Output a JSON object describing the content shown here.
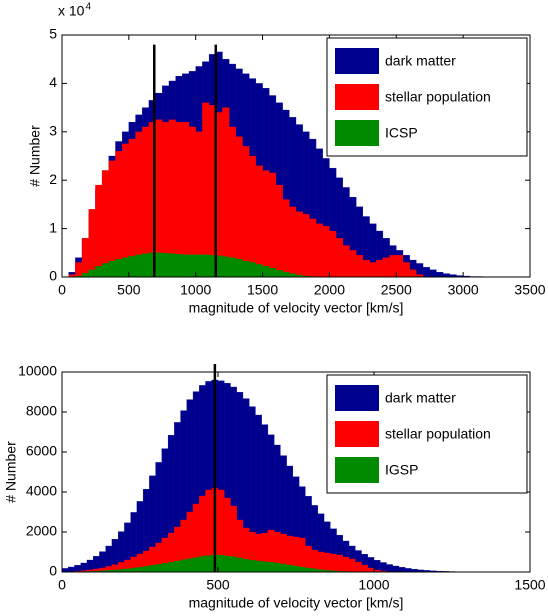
{
  "chart_data": [
    {
      "type": "histogram",
      "y_multiplier": "x 10",
      "y_multiplier_exponent": "4",
      "xlabel": "magnitude of velocity vector [km/s]",
      "ylabel": "# Number",
      "xlim": [
        0,
        3500
      ],
      "xticks": [
        0,
        500,
        1000,
        1500,
        2000,
        2500,
        3000,
        3500
      ],
      "ylim": [
        0,
        5
      ],
      "yticks": [
        0,
        1,
        2,
        3,
        4,
        5
      ],
      "legend": "northeast",
      "bins": [
        0,
        50,
        100,
        150,
        200,
        250,
        300,
        350,
        400,
        450,
        500,
        550,
        600,
        650,
        700,
        750,
        800,
        850,
        900,
        950,
        1000,
        1050,
        1100,
        1150,
        1200,
        1250,
        1300,
        1350,
        1400,
        1450,
        1500,
        1550,
        1600,
        1650,
        1700,
        1750,
        1800,
        1850,
        1900,
        1950,
        2000,
        2050,
        2100,
        2150,
        2200,
        2250,
        2300,
        2350,
        2400,
        2450,
        2500,
        2550,
        2600,
        2650,
        2700,
        2750,
        2800,
        2850,
        2900,
        2950,
        3000,
        3050,
        3100,
        3150,
        3200,
        3250,
        3300,
        3350,
        3400,
        3450,
        3500
      ],
      "series": [
        {
          "name": "dark matter",
          "color": "#00008f",
          "values": [
            0,
            0.1,
            0.4,
            0.8,
            1.3,
            1.8,
            2.2,
            2.5,
            2.8,
            3.0,
            3.2,
            3.35,
            3.5,
            3.65,
            3.8,
            3.95,
            4.05,
            4.15,
            4.2,
            4.25,
            4.35,
            4.45,
            4.6,
            4.65,
            4.5,
            4.4,
            4.3,
            4.2,
            4.1,
            4.0,
            3.9,
            3.75,
            3.6,
            3.45,
            3.3,
            3.15,
            3.0,
            2.85,
            2.65,
            2.45,
            2.25,
            2.05,
            1.85,
            1.65,
            1.45,
            1.25,
            1.1,
            0.95,
            0.8,
            0.65,
            0.55,
            0.45,
            0.35,
            0.28,
            0.2,
            0.15,
            0.1,
            0.07,
            0.05,
            0.03,
            0.02,
            0.01,
            0.01,
            0,
            0,
            0,
            0,
            0,
            0,
            0
          ]
        },
        {
          "name": "stellar population",
          "color": "#ff0000",
          "values": [
            0,
            0.05,
            0.3,
            0.8,
            1.4,
            1.9,
            2.2,
            2.4,
            2.6,
            2.75,
            2.85,
            3.0,
            3.1,
            3.2,
            3.25,
            3.2,
            3.25,
            3.2,
            3.2,
            3.1,
            3.0,
            3.6,
            3.55,
            3.4,
            3.5,
            3.1,
            2.9,
            2.7,
            2.5,
            2.3,
            2.2,
            2.15,
            1.9,
            1.6,
            1.45,
            1.35,
            1.3,
            1.2,
            1.1,
            1.05,
            0.95,
            0.8,
            0.65,
            0.55,
            0.45,
            0.35,
            0.3,
            0.35,
            0.4,
            0.45,
            0.45,
            0.3,
            0.15,
            0.05,
            0,
            0,
            0,
            0,
            0,
            0,
            0,
            0,
            0,
            0,
            0,
            0,
            0,
            0,
            0,
            0
          ]
        },
        {
          "name": "ICSP",
          "color": "#008a00",
          "values": [
            0,
            0,
            0.02,
            0.08,
            0.15,
            0.22,
            0.28,
            0.33,
            0.37,
            0.4,
            0.43,
            0.46,
            0.48,
            0.5,
            0.5,
            0.49,
            0.48,
            0.47,
            0.46,
            0.46,
            0.46,
            0.46,
            0.45,
            0.44,
            0.42,
            0.4,
            0.37,
            0.33,
            0.3,
            0.26,
            0.22,
            0.18,
            0.14,
            0.1,
            0.07,
            0.04,
            0.02,
            0.01,
            0,
            0,
            0,
            0,
            0,
            0,
            0,
            0,
            0,
            0,
            0,
            0,
            0,
            0,
            0,
            0,
            0,
            0,
            0,
            0,
            0,
            0,
            0,
            0,
            0,
            0,
            0,
            0,
            0,
            0,
            0,
            0
          ]
        }
      ],
      "vlines": [
        {
          "x": 690,
          "y": 4.8
        },
        {
          "x": 1150,
          "y": 4.8
        }
      ]
    },
    {
      "type": "histogram",
      "xlabel": "magnitude of velocity vector [km/s]",
      "ylabel": "# Number",
      "xlim": [
        0,
        1500
      ],
      "xticks": [
        0,
        500,
        1000,
        1500
      ],
      "ylim": [
        0,
        10000
      ],
      "yticks": [
        0,
        2000,
        4000,
        6000,
        8000,
        10000
      ],
      "legend": "northeast",
      "bins": [
        0,
        20,
        40,
        60,
        80,
        100,
        120,
        140,
        160,
        180,
        200,
        220,
        240,
        260,
        280,
        300,
        320,
        340,
        360,
        380,
        400,
        420,
        440,
        460,
        480,
        500,
        520,
        540,
        560,
        580,
        600,
        620,
        640,
        660,
        680,
        700,
        720,
        740,
        760,
        780,
        800,
        820,
        840,
        860,
        880,
        900,
        920,
        940,
        960,
        980,
        1000,
        1020,
        1040,
        1060,
        1080,
        1100,
        1120,
        1140,
        1160,
        1180,
        1200,
        1220,
        1240,
        1260,
        1280,
        1300,
        1320,
        1340,
        1360,
        1380,
        1400,
        1420,
        1440,
        1460,
        1480,
        1500
      ],
      "series": [
        {
          "name": "dark matter",
          "color": "#00008f",
          "values": [
            180,
            250,
            340,
            450,
            600,
            790,
            1020,
            1300,
            1640,
            2020,
            2460,
            2980,
            3530,
            4140,
            4810,
            5480,
            6170,
            6840,
            7480,
            8070,
            8620,
            9020,
            9330,
            9530,
            9600,
            9560,
            9440,
            9250,
            8990,
            8670,
            8270,
            7850,
            7370,
            6860,
            6350,
            5820,
            5300,
            4760,
            4270,
            3790,
            3330,
            2910,
            2510,
            2160,
            1840,
            1550,
            1300,
            1075,
            890,
            730,
            590,
            475,
            375,
            300,
            235,
            180,
            140,
            105,
            80,
            60,
            45,
            33,
            24,
            17,
            12,
            9,
            6,
            4,
            3,
            2,
            1,
            1,
            0,
            0,
            0
          ]
        },
        {
          "name": "stellar population",
          "color": "#ff0000",
          "values": [
            10,
            20,
            40,
            70,
            100,
            150,
            200,
            280,
            370,
            480,
            600,
            750,
            900,
            1050,
            1250,
            1450,
            1700,
            1950,
            2250,
            2600,
            3000,
            3400,
            3800,
            4100,
            4200,
            4100,
            3700,
            3300,
            2600,
            2200,
            2000,
            1900,
            1950,
            2100,
            2000,
            1900,
            1800,
            1750,
            1700,
            1300,
            1100,
            1000,
            950,
            900,
            850,
            750,
            650,
            500,
            350,
            200,
            100,
            50,
            20,
            10,
            0,
            0,
            0,
            0,
            0,
            0,
            0,
            0,
            0,
            0,
            0,
            0,
            0,
            0,
            0,
            0,
            0,
            0,
            0,
            0,
            0
          ]
        },
        {
          "name": "IGSP",
          "color": "#008a00",
          "values": [
            0,
            5,
            10,
            20,
            30,
            45,
            60,
            80,
            100,
            130,
            160,
            200,
            240,
            280,
            330,
            380,
            430,
            490,
            550,
            610,
            670,
            720,
            780,
            820,
            860,
            840,
            800,
            760,
            700,
            640,
            590,
            550,
            520,
            490,
            450,
            400,
            350,
            300,
            250,
            200,
            160,
            120,
            90,
            60,
            40,
            25,
            15,
            8,
            4,
            2,
            0,
            0,
            0,
            0,
            0,
            0,
            0,
            0,
            0,
            0,
            0,
            0,
            0,
            0,
            0,
            0,
            0,
            0,
            0,
            0,
            0,
            0,
            0,
            0,
            0
          ]
        }
      ],
      "vlines": [
        {
          "x": 490,
          "y": 10400
        }
      ]
    }
  ]
}
